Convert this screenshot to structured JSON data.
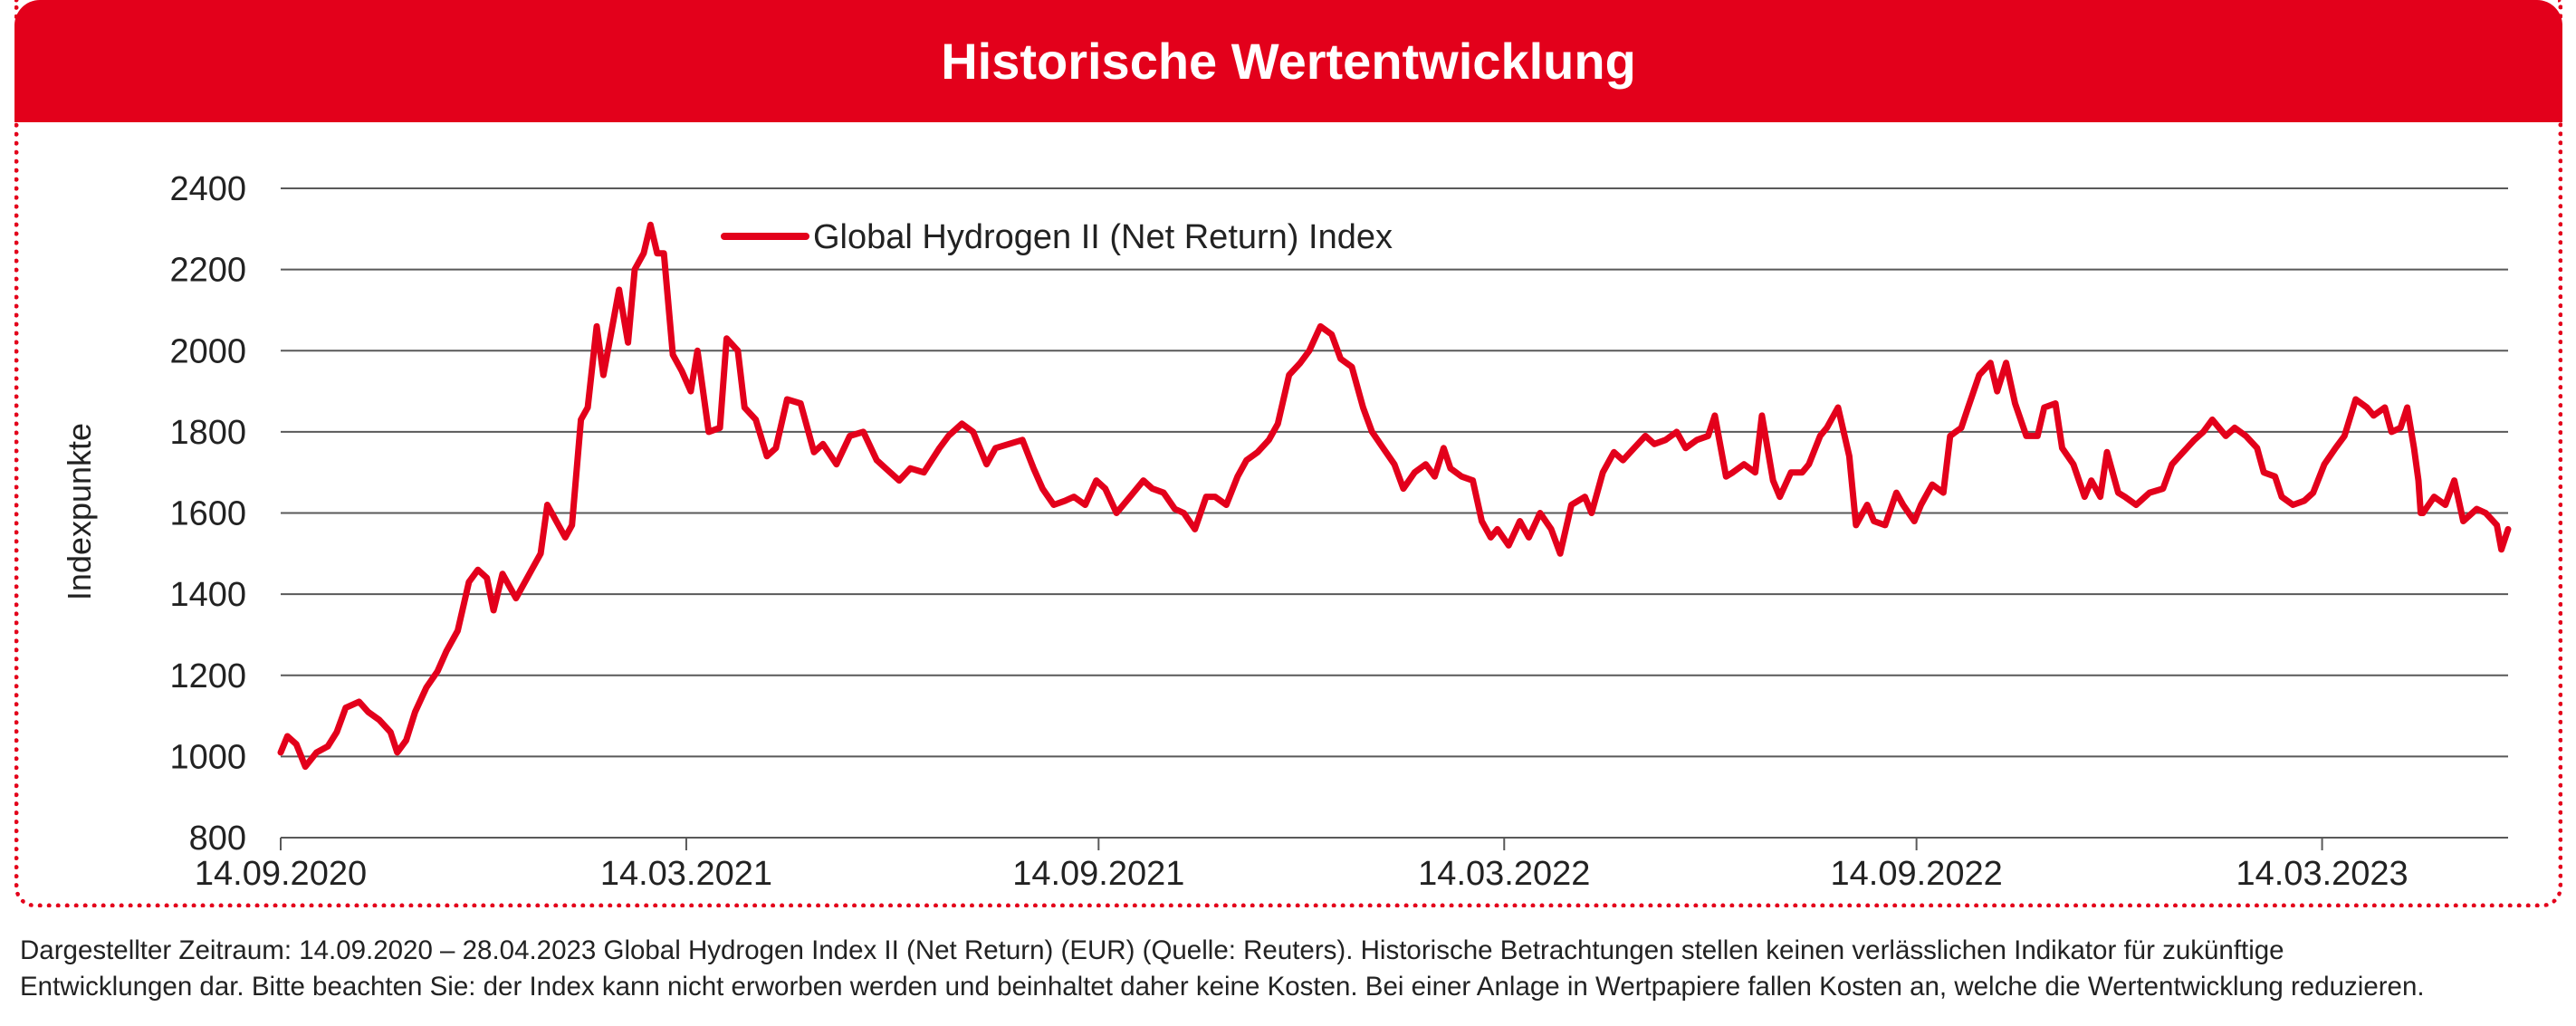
{
  "header": {
    "title": "Historische Wertentwicklung"
  },
  "colors": {
    "accent": "#e3001b",
    "grid": "#595959",
    "text": "#222222"
  },
  "chart_data": {
    "type": "line",
    "title": "Historische Wertentwicklung",
    "xlabel": "",
    "ylabel": "Indexpunkte",
    "ylim": [
      800,
      2400
    ],
    "yticks": [
      800,
      1000,
      1200,
      1400,
      1600,
      1800,
      2000,
      2200,
      2400
    ],
    "xlim": [
      "2020-09-14",
      "2023-04-28"
    ],
    "xticks": [
      "14.09.2020",
      "14.03.2021",
      "14.09.2021",
      "14.03.2022",
      "14.09.2022",
      "14.03.2023"
    ],
    "grid": true,
    "legend_position": "top-left",
    "series": [
      {
        "name": "Global Hydrogen II (Net Return) Index",
        "color": "#e3001b",
        "points": [
          [
            "2020-09-14",
            1010
          ],
          [
            "2020-09-17",
            1050
          ],
          [
            "2020-09-21",
            1030
          ],
          [
            "2020-09-25",
            975
          ],
          [
            "2020-09-30",
            1010
          ],
          [
            "2020-10-05",
            1025
          ],
          [
            "2020-10-09",
            1060
          ],
          [
            "2020-10-13",
            1120
          ],
          [
            "2020-10-19",
            1135
          ],
          [
            "2020-10-23",
            1110
          ],
          [
            "2020-10-28",
            1090
          ],
          [
            "2020-11-02",
            1060
          ],
          [
            "2020-11-05",
            1010
          ],
          [
            "2020-11-09",
            1040
          ],
          [
            "2020-11-13",
            1110
          ],
          [
            "2020-11-18",
            1170
          ],
          [
            "2020-11-23",
            1210
          ],
          [
            "2020-11-27",
            1260
          ],
          [
            "2020-12-02",
            1310
          ],
          [
            "2020-12-07",
            1430
          ],
          [
            "2020-12-11",
            1460
          ],
          [
            "2020-12-15",
            1440
          ],
          [
            "2020-12-18",
            1360
          ],
          [
            "2020-12-22",
            1450
          ],
          [
            "2020-12-28",
            1390
          ],
          [
            "2021-01-04",
            1460
          ],
          [
            "2021-01-08",
            1500
          ],
          [
            "2021-01-11",
            1620
          ],
          [
            "2021-01-15",
            1580
          ],
          [
            "2021-01-19",
            1540
          ],
          [
            "2021-01-22",
            1570
          ],
          [
            "2021-01-26",
            1830
          ],
          [
            "2021-01-29",
            1860
          ],
          [
            "2021-02-02",
            2060
          ],
          [
            "2021-02-05",
            1940
          ],
          [
            "2021-02-09",
            2060
          ],
          [
            "2021-02-12",
            2150
          ],
          [
            "2021-02-16",
            2020
          ],
          [
            "2021-02-19",
            2200
          ],
          [
            "2021-02-23",
            2240
          ],
          [
            "2021-02-26",
            2310
          ],
          [
            "2021-03-01",
            2240
          ],
          [
            "2021-03-04",
            2240
          ],
          [
            "2021-03-08",
            1990
          ],
          [
            "2021-03-12",
            1950
          ],
          [
            "2021-03-16",
            1900
          ],
          [
            "2021-03-19",
            2000
          ],
          [
            "2021-03-24",
            1800
          ],
          [
            "2021-03-29",
            1810
          ],
          [
            "2021-04-01",
            2030
          ],
          [
            "2021-04-06",
            2000
          ],
          [
            "2021-04-09",
            1860
          ],
          [
            "2021-04-14",
            1830
          ],
          [
            "2021-04-19",
            1740
          ],
          [
            "2021-04-23",
            1760
          ],
          [
            "2021-04-28",
            1880
          ],
          [
            "2021-05-04",
            1870
          ],
          [
            "2021-05-10",
            1750
          ],
          [
            "2021-05-14",
            1770
          ],
          [
            "2021-05-20",
            1720
          ],
          [
            "2021-05-26",
            1790
          ],
          [
            "2021-06-01",
            1800
          ],
          [
            "2021-06-07",
            1730
          ],
          [
            "2021-06-11",
            1710
          ],
          [
            "2021-06-17",
            1680
          ],
          [
            "2021-06-22",
            1710
          ],
          [
            "2021-06-28",
            1700
          ],
          [
            "2021-07-05",
            1760
          ],
          [
            "2021-07-09",
            1790
          ],
          [
            "2021-07-15",
            1820
          ],
          [
            "2021-07-20",
            1800
          ],
          [
            "2021-07-26",
            1720
          ],
          [
            "2021-07-30",
            1760
          ],
          [
            "2021-08-05",
            1770
          ],
          [
            "2021-08-11",
            1780
          ],
          [
            "2021-08-16",
            1710
          ],
          [
            "2021-08-20",
            1660
          ],
          [
            "2021-08-25",
            1620
          ],
          [
            "2021-08-30",
            1630
          ],
          [
            "2021-09-03",
            1640
          ],
          [
            "2021-09-08",
            1620
          ],
          [
            "2021-09-13",
            1680
          ],
          [
            "2021-09-17",
            1660
          ],
          [
            "2021-09-22",
            1600
          ],
          [
            "2021-09-28",
            1640
          ],
          [
            "2021-10-04",
            1680
          ],
          [
            "2021-10-08",
            1660
          ],
          [
            "2021-10-13",
            1650
          ],
          [
            "2021-10-18",
            1610
          ],
          [
            "2021-10-22",
            1600
          ],
          [
            "2021-10-27",
            1560
          ],
          [
            "2021-11-01",
            1640
          ],
          [
            "2021-11-05",
            1640
          ],
          [
            "2021-11-10",
            1620
          ],
          [
            "2021-11-15",
            1690
          ],
          [
            "2021-11-19",
            1730
          ],
          [
            "2021-11-24",
            1750
          ],
          [
            "2021-11-29",
            1780
          ],
          [
            "2021-12-03",
            1820
          ],
          [
            "2021-12-08",
            1940
          ],
          [
            "2021-12-13",
            1970
          ],
          [
            "2021-12-17",
            2000
          ],
          [
            "2021-12-22",
            2060
          ],
          [
            "2021-12-27",
            2040
          ],
          [
            "2021-12-31",
            1980
          ],
          [
            "2022-01-05",
            1960
          ],
          [
            "2022-01-10",
            1860
          ],
          [
            "2022-01-14",
            1800
          ],
          [
            "2022-01-19",
            1760
          ],
          [
            "2022-01-24",
            1720
          ],
          [
            "2022-01-28",
            1660
          ],
          [
            "2022-02-02",
            1700
          ],
          [
            "2022-02-07",
            1720
          ],
          [
            "2022-02-11",
            1690
          ],
          [
            "2022-02-15",
            1760
          ],
          [
            "2022-02-18",
            1710
          ],
          [
            "2022-02-23",
            1690
          ],
          [
            "2022-02-28",
            1680
          ],
          [
            "2022-03-04",
            1580
          ],
          [
            "2022-03-08",
            1540
          ],
          [
            "2022-03-11",
            1560
          ],
          [
            "2022-03-16",
            1520
          ],
          [
            "2022-03-21",
            1580
          ],
          [
            "2022-03-25",
            1540
          ],
          [
            "2022-03-30",
            1600
          ],
          [
            "2022-04-04",
            1560
          ],
          [
            "2022-04-08",
            1500
          ],
          [
            "2022-04-13",
            1620
          ],
          [
            "2022-04-19",
            1640
          ],
          [
            "2022-04-22",
            1600
          ],
          [
            "2022-04-27",
            1700
          ],
          [
            "2022-05-02",
            1750
          ],
          [
            "2022-05-06",
            1730
          ],
          [
            "2022-05-11",
            1760
          ],
          [
            "2022-05-16",
            1790
          ],
          [
            "2022-05-20",
            1770
          ],
          [
            "2022-05-25",
            1780
          ],
          [
            "2022-05-30",
            1800
          ],
          [
            "2022-06-03",
            1760
          ],
          [
            "2022-06-08",
            1780
          ],
          [
            "2022-06-13",
            1790
          ],
          [
            "2022-06-16",
            1840
          ],
          [
            "2022-06-21",
            1690
          ],
          [
            "2022-06-24",
            1700
          ],
          [
            "2022-06-29",
            1720
          ],
          [
            "2022-07-04",
            1700
          ],
          [
            "2022-07-07",
            1840
          ],
          [
            "2022-07-12",
            1680
          ],
          [
            "2022-07-15",
            1640
          ],
          [
            "2022-07-20",
            1700
          ],
          [
            "2022-07-25",
            1700
          ],
          [
            "2022-07-28",
            1720
          ],
          [
            "2022-08-02",
            1790
          ],
          [
            "2022-08-05",
            1810
          ],
          [
            "2022-08-10",
            1860
          ],
          [
            "2022-08-15",
            1740
          ],
          [
            "2022-08-18",
            1570
          ],
          [
            "2022-08-23",
            1620
          ],
          [
            "2022-08-26",
            1580
          ],
          [
            "2022-08-31",
            1570
          ],
          [
            "2022-09-05",
            1650
          ],
          [
            "2022-09-08",
            1620
          ],
          [
            "2022-09-13",
            1580
          ],
          [
            "2022-09-16",
            1620
          ],
          [
            "2022-09-21",
            1670
          ],
          [
            "2022-09-26",
            1650
          ],
          [
            "2022-09-29",
            1790
          ],
          [
            "2022-10-04",
            1810
          ],
          [
            "2022-10-07",
            1860
          ],
          [
            "2022-10-12",
            1940
          ],
          [
            "2022-10-17",
            1970
          ],
          [
            "2022-10-20",
            1900
          ],
          [
            "2022-10-24",
            1970
          ],
          [
            "2022-10-28",
            1870
          ],
          [
            "2022-11-02",
            1790
          ],
          [
            "2022-11-07",
            1790
          ],
          [
            "2022-11-10",
            1860
          ],
          [
            "2022-11-15",
            1870
          ],
          [
            "2022-11-18",
            1760
          ],
          [
            "2022-11-23",
            1720
          ],
          [
            "2022-11-28",
            1640
          ],
          [
            "2022-12-01",
            1680
          ],
          [
            "2022-12-05",
            1640
          ],
          [
            "2022-12-08",
            1750
          ],
          [
            "2022-12-13",
            1650
          ],
          [
            "2022-12-16",
            1640
          ],
          [
            "2022-12-21",
            1620
          ],
          [
            "2022-12-27",
            1650
          ],
          [
            "2023-01-02",
            1660
          ],
          [
            "2023-01-06",
            1720
          ],
          [
            "2023-01-11",
            1750
          ],
          [
            "2023-01-16",
            1780
          ],
          [
            "2023-01-20",
            1800
          ],
          [
            "2023-01-24",
            1830
          ],
          [
            "2023-01-30",
            1790
          ],
          [
            "2023-02-03",
            1810
          ],
          [
            "2023-02-08",
            1790
          ],
          [
            "2023-02-13",
            1760
          ],
          [
            "2023-02-16",
            1700
          ],
          [
            "2023-02-21",
            1690
          ],
          [
            "2023-02-24",
            1640
          ],
          [
            "2023-03-01",
            1620
          ],
          [
            "2023-03-06",
            1630
          ],
          [
            "2023-03-10",
            1650
          ],
          [
            "2023-03-15",
            1720
          ],
          [
            "2023-03-20",
            1760
          ],
          [
            "2023-03-24",
            1790
          ],
          [
            "2023-03-29",
            1880
          ],
          [
            "2023-04-03",
            1860
          ],
          [
            "2023-04-06",
            1840
          ],
          [
            "2023-04-11",
            1860
          ],
          [
            "2023-04-14",
            1800
          ],
          [
            "2023-04-18",
            1810
          ],
          [
            "2023-04-21",
            1860
          ],
          [
            "2023-04-24",
            1760
          ],
          [
            "2023-04-26",
            1680
          ],
          [
            "2023-04-27",
            1600
          ],
          [
            "2023-04-28",
            1600
          ],
          [
            "2023-05-03",
            1640
          ],
          [
            "2023-05-08",
            1620
          ],
          [
            "2023-05-12",
            1680
          ],
          [
            "2023-05-16",
            1580
          ],
          [
            "2023-05-22",
            1610
          ],
          [
            "2023-05-26",
            1600
          ],
          [
            "2023-05-31",
            1570
          ],
          [
            "2023-06-02",
            1510
          ],
          [
            "2023-06-05",
            1560
          ]
        ]
      }
    ]
  },
  "footnote": {
    "line1": "Dargestellter Zeitraum: 14.09.2020 – 28.04.2023 Global Hydrogen Index II (Net Return) (EUR) (Quelle: Reuters). Historische Betrachtungen stellen keinen verlässlichen Indikator für zukünftige",
    "line2": "Entwicklungen dar. Bitte beachten Sie: der Index kann nicht erworben werden und beinhaltet daher keine Kosten. Bei einer Anlage in Wertpapiere fallen Kosten an, welche die Wertentwicklung reduzieren."
  }
}
